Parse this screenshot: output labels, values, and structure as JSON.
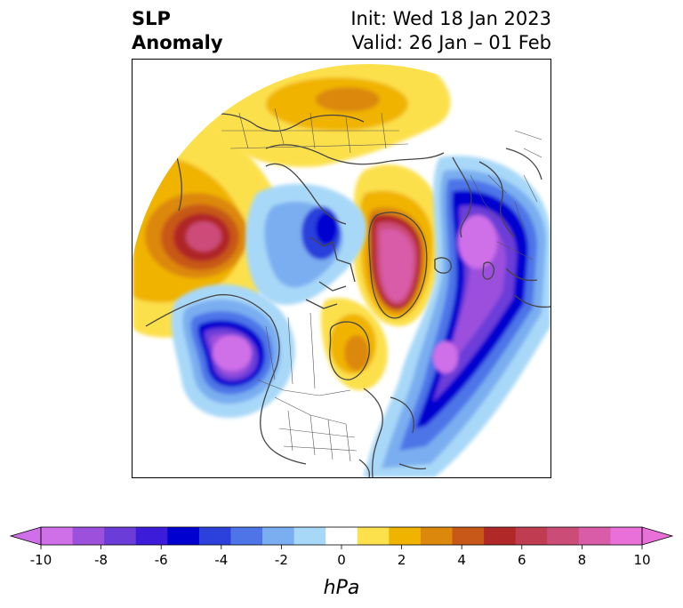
{
  "title": {
    "variable_line1": "SLP",
    "variable_line2": "Anomaly",
    "init": "Init: Wed 18 Jan 2023",
    "valid": "Valid: 26 Jan – 01 Feb"
  },
  "map": {
    "projection": "north-polar-stereographic",
    "region": "Northern Hemisphere (North America / Arctic / Eurasia)"
  },
  "colorbar": {
    "unit_label": "hPa",
    "ticks": [
      "-10",
      "-8",
      "-6",
      "-4",
      "-2",
      "0",
      "2",
      "4",
      "6",
      "8",
      "10"
    ],
    "colors": [
      "#d070e8",
      "#9c50dc",
      "#6c3cd8",
      "#3c1cd8",
      "#0000d0",
      "#2c40dc",
      "#4e74e8",
      "#7aaef0",
      "#a8d8f8",
      "#ffffff",
      "#fce04c",
      "#f0b400",
      "#dc880c",
      "#c85818",
      "#b02828",
      "#c03c50",
      "#cc4c78",
      "#d85ca8",
      "#e870d8"
    ],
    "under_color": "#d070e8",
    "over_color": "#e870d8"
  }
}
